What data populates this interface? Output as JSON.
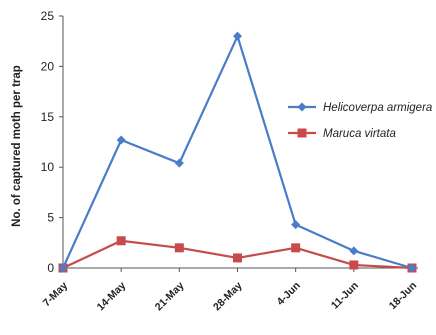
{
  "chart_data": {
    "type": "line",
    "ylabel": "No. of captured moth per trap",
    "xlabel": "",
    "ylim": [
      0,
      25
    ],
    "yticks": [
      0,
      5,
      10,
      15,
      20,
      25
    ],
    "categories": [
      "7-May",
      "14-May",
      "21-May",
      "28-May",
      "4-Jun",
      "11-Jun",
      "18-Jun"
    ],
    "grid": false,
    "legend_position": "right",
    "series": [
      {
        "name": "Helicoverpa armigera",
        "color": "#4a7cc9",
        "marker": "diamond",
        "values": [
          0,
          12.7,
          10.4,
          23.0,
          4.3,
          1.7,
          0
        ]
      },
      {
        "name": "Maruca virtata",
        "color": "#c84a4a",
        "marker": "square",
        "values": [
          0,
          2.7,
          2.0,
          1.0,
          2.0,
          0.3,
          0
        ]
      }
    ]
  }
}
